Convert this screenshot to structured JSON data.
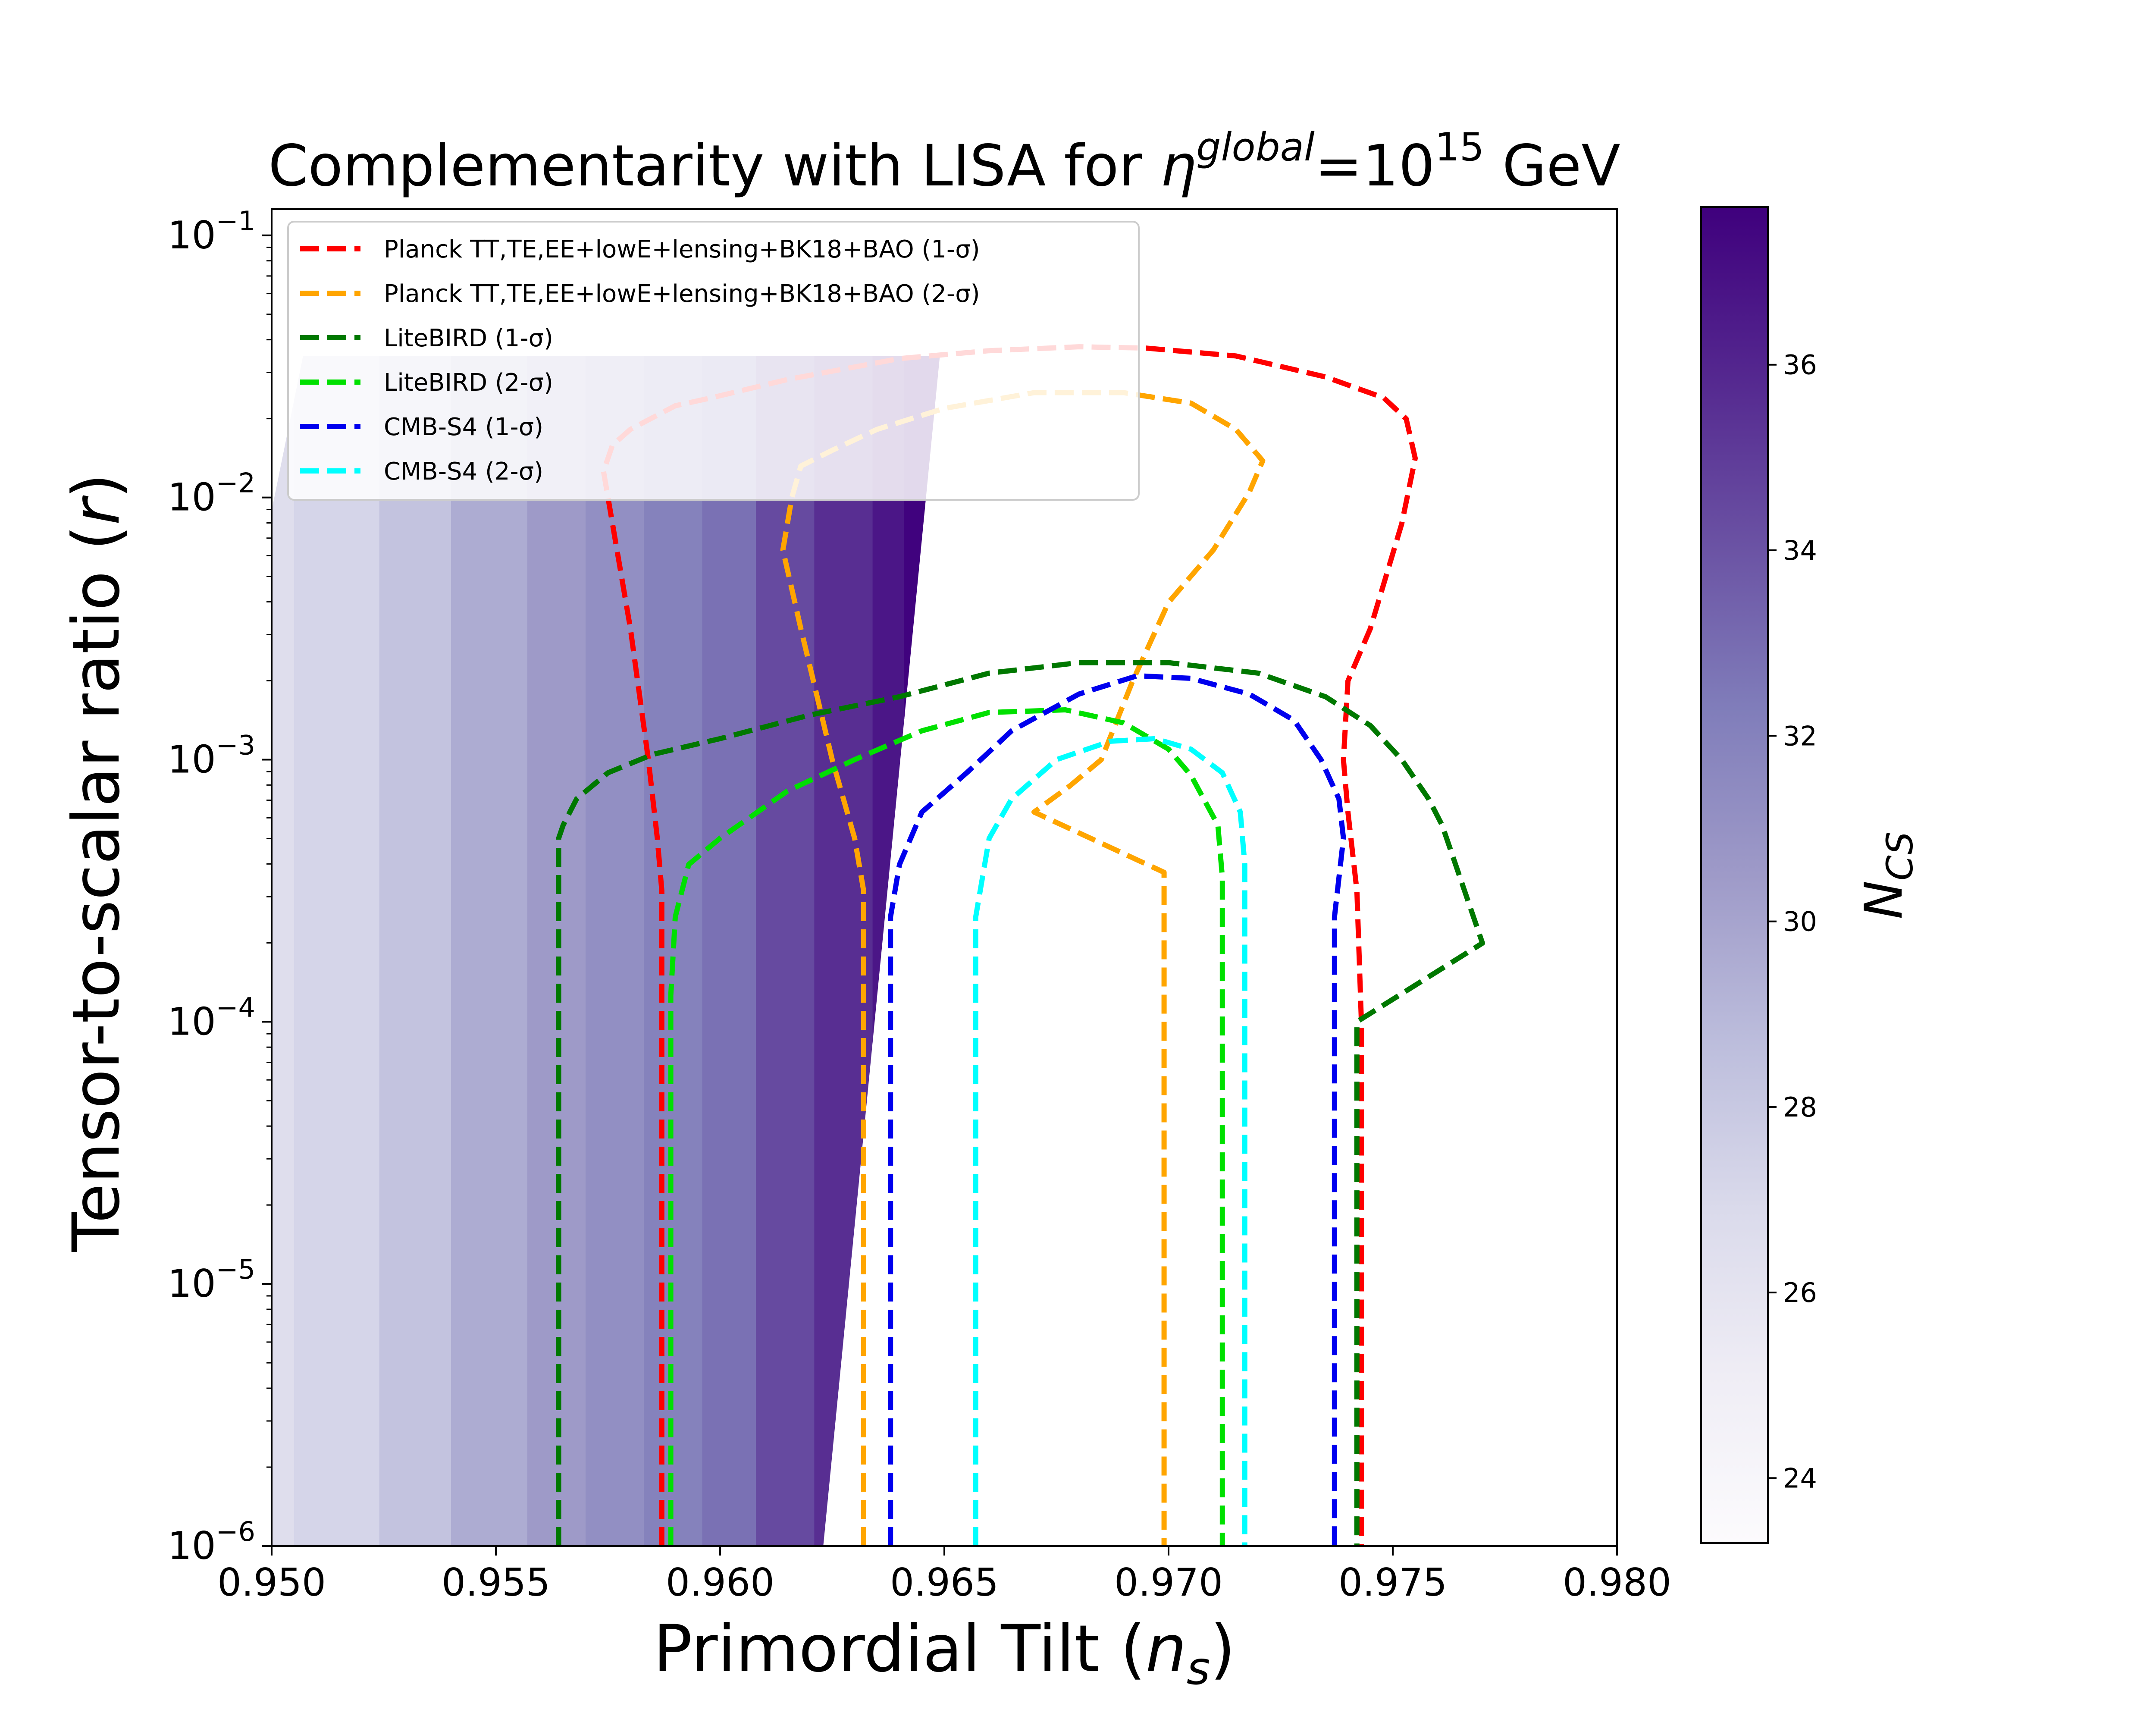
{
  "chart_data": {
    "type": "contour",
    "title_main": "Complementarity with LISA for ",
    "title_eta": "η",
    "title_sup": "global",
    "title_eq": "=10",
    "title_exp": "15",
    "title_unit": " GeV",
    "xlabel_main": "Primordial Tilt (",
    "xlabel_var": "n",
    "xlabel_sub": "s",
    "xlabel_close": ")",
    "ylabel_main": "Tensor-to-scalar ratio (",
    "ylabel_var": "r",
    "ylabel_close": ")",
    "x_range": [
      0.95,
      0.98
    ],
    "y_log_range": [
      -6,
      -0.9
    ],
    "x_ticks": [
      {
        "v": 0.95,
        "label": "0.950"
      },
      {
        "v": 0.955,
        "label": "0.955"
      },
      {
        "v": 0.96,
        "label": "0.960"
      },
      {
        "v": 0.965,
        "label": "0.965"
      },
      {
        "v": 0.97,
        "label": "0.970"
      },
      {
        "v": 0.975,
        "label": "0.975"
      },
      {
        "v": 0.98,
        "label": "0.980"
      }
    ],
    "y_ticks": [
      {
        "e": -6,
        "base": "10",
        "exp": "−6"
      },
      {
        "e": -5,
        "base": "10",
        "exp": "−5"
      },
      {
        "e": -4,
        "base": "10",
        "exp": "−4"
      },
      {
        "e": -3,
        "base": "10",
        "exp": "−3"
      },
      {
        "e": -2,
        "base": "10",
        "exp": "−2"
      },
      {
        "e": -1,
        "base": "10",
        "exp": "−1"
      }
    ],
    "colorbar": {
      "label_main": "N",
      "label_sub": "CS",
      "range": [
        23.3,
        37.7
      ],
      "ticks": [
        {
          "v": 24,
          "label": "24"
        },
        {
          "v": 26,
          "label": "26"
        },
        {
          "v": 28,
          "label": "28"
        },
        {
          "v": 30,
          "label": "30"
        },
        {
          "v": 32,
          "label": "32"
        },
        {
          "v": 34,
          "label": "34"
        },
        {
          "v": 36,
          "label": "36"
        }
      ]
    },
    "filled_region": {
      "left_log_r": [
        -2.05,
        -1.46
      ],
      "top_log_r": [
        -1.46,
        -1.46
      ],
      "right_edge": [
        [
          0.9649,
          -1.46
        ],
        [
          0.9623,
          -6.0
        ]
      ],
      "bands": [
        {
          "x0": 0.95,
          "x1": 0.9505,
          "n": 26.5
        },
        {
          "x0": 0.9505,
          "x1": 0.9524,
          "n": 27.2
        },
        {
          "x0": 0.9524,
          "x1": 0.954,
          "n": 28.3
        },
        {
          "x0": 0.954,
          "x1": 0.9557,
          "n": 29.6
        },
        {
          "x0": 0.9557,
          "x1": 0.957,
          "n": 30.5
        },
        {
          "x0": 0.957,
          "x1": 0.9583,
          "n": 31.2
        },
        {
          "x0": 0.9583,
          "x1": 0.9596,
          "n": 32.0
        },
        {
          "x0": 0.9596,
          "x1": 0.9608,
          "n": 32.8
        },
        {
          "x0": 0.9608,
          "x1": 0.9621,
          "n": 34.4
        },
        {
          "x0": 0.9621,
          "x1": 0.9634,
          "n": 35.6
        },
        {
          "x0": 0.9634,
          "x1": 0.9641,
          "n": 36.7
        },
        {
          "x0": 0.9641,
          "x1": 0.966,
          "n": 37.6
        }
      ]
    },
    "series": [
      {
        "name": "Planck TT,TE,EE+lowE+lensing+BK18+BAO (1-σ)",
        "color": "#ff0000",
        "points": [
          [
            0.9587,
            -6.0
          ],
          [
            0.9587,
            -3.5
          ],
          [
            0.9586,
            -3.3
          ],
          [
            0.9584,
            -3.0
          ],
          [
            0.958,
            -2.5
          ],
          [
            0.9575,
            -2.0
          ],
          [
            0.9574,
            -1.9
          ],
          [
            0.9576,
            -1.8
          ],
          [
            0.958,
            -1.74
          ],
          [
            0.959,
            -1.65
          ],
          [
            0.9598,
            -1.62
          ],
          [
            0.9615,
            -1.55
          ],
          [
            0.964,
            -1.47
          ],
          [
            0.966,
            -1.44
          ],
          [
            0.968,
            -1.425
          ],
          [
            0.9695,
            -1.43
          ],
          [
            0.9715,
            -1.46
          ],
          [
            0.9735,
            -1.54
          ],
          [
            0.9748,
            -1.62
          ],
          [
            0.9753,
            -1.7
          ],
          [
            0.9755,
            -1.85
          ],
          [
            0.9752,
            -2.1
          ],
          [
            0.9745,
            -2.5
          ],
          [
            0.974,
            -2.7
          ],
          [
            0.9739,
            -3.0
          ],
          [
            0.974,
            -3.2
          ],
          [
            0.9742,
            -3.5
          ],
          [
            0.9743,
            -4.0
          ],
          [
            0.9743,
            -6.0
          ]
        ]
      },
      {
        "name": "Planck TT,TE,EE+lowE+lensing+BK18+BAO (2-σ)",
        "color": "#ffa500",
        "points": [
          [
            0.9632,
            -6.0
          ],
          [
            0.9632,
            -3.5
          ],
          [
            0.963,
            -3.3
          ],
          [
            0.9625,
            -3.0
          ],
          [
            0.9618,
            -2.5
          ],
          [
            0.9614,
            -2.2
          ],
          [
            0.9616,
            -2.0
          ],
          [
            0.9618,
            -1.88
          ],
          [
            0.9625,
            -1.82
          ],
          [
            0.9635,
            -1.74
          ],
          [
            0.965,
            -1.66
          ],
          [
            0.967,
            -1.6
          ],
          [
            0.969,
            -1.6
          ],
          [
            0.9705,
            -1.64
          ],
          [
            0.9715,
            -1.74
          ],
          [
            0.9721,
            -1.86
          ],
          [
            0.9718,
            -1.98
          ],
          [
            0.971,
            -2.2
          ],
          [
            0.97,
            -2.4
          ],
          [
            0.9692,
            -2.7
          ],
          [
            0.9685,
            -3.0
          ],
          [
            0.9678,
            -3.1
          ],
          [
            0.967,
            -3.2
          ],
          [
            0.9699,
            -3.43
          ],
          [
            0.9699,
            -6.0
          ]
        ]
      },
      {
        "name": "LiteBIRD (1-σ)",
        "color": "#007800",
        "points": [
          [
            0.9564,
            -6.0
          ],
          [
            0.9564,
            -3.3
          ],
          [
            0.9565,
            -3.25
          ],
          [
            0.9568,
            -3.15
          ],
          [
            0.9575,
            -3.05
          ],
          [
            0.9585,
            -2.98
          ],
          [
            0.96,
            -2.92
          ],
          [
            0.962,
            -2.83
          ],
          [
            0.964,
            -2.76
          ],
          [
            0.966,
            -2.67
          ],
          [
            0.968,
            -2.63
          ],
          [
            0.97,
            -2.63
          ],
          [
            0.972,
            -2.67
          ],
          [
            0.9735,
            -2.76
          ],
          [
            0.9745,
            -2.87
          ],
          [
            0.9752,
            -3.0
          ],
          [
            0.9758,
            -3.15
          ],
          [
            0.9761,
            -3.25
          ],
          [
            0.9765,
            -3.45
          ],
          [
            0.977,
            -3.7
          ],
          [
            0.9742,
            -4.0
          ],
          [
            0.9742,
            -6.0
          ]
        ]
      },
      {
        "name": "LiteBIRD (2-σ)",
        "color": "#00e000",
        "points": [
          [
            0.9589,
            -6.0
          ],
          [
            0.9589,
            -3.9
          ],
          [
            0.959,
            -3.6
          ],
          [
            0.9593,
            -3.4
          ],
          [
            0.96,
            -3.3
          ],
          [
            0.9615,
            -3.12
          ],
          [
            0.963,
            -3.0
          ],
          [
            0.9645,
            -2.89
          ],
          [
            0.966,
            -2.82
          ],
          [
            0.9677,
            -2.81
          ],
          [
            0.969,
            -2.86
          ],
          [
            0.97,
            -2.96
          ],
          [
            0.9705,
            -3.06
          ],
          [
            0.9711,
            -3.25
          ],
          [
            0.9712,
            -3.45
          ],
          [
            0.9712,
            -6.0
          ]
        ]
      },
      {
        "name": "CMB-S4 (1-σ)",
        "color": "#0000ee",
        "points": [
          [
            0.9638,
            -6.0
          ],
          [
            0.9638,
            -3.6
          ],
          [
            0.964,
            -3.4
          ],
          [
            0.9645,
            -3.2
          ],
          [
            0.9655,
            -3.05
          ],
          [
            0.9665,
            -2.89
          ],
          [
            0.968,
            -2.75
          ],
          [
            0.9693,
            -2.68
          ],
          [
            0.9705,
            -2.69
          ],
          [
            0.9718,
            -2.75
          ],
          [
            0.9728,
            -2.85
          ],
          [
            0.9734,
            -3.0
          ],
          [
            0.9738,
            -3.15
          ],
          [
            0.9739,
            -3.3
          ],
          [
            0.9737,
            -3.6
          ],
          [
            0.9737,
            -6.0
          ]
        ]
      },
      {
        "name": "CMB-S4 (2-σ)",
        "color": "#00ffff",
        "points": [
          [
            0.9657,
            -6.0
          ],
          [
            0.9657,
            -3.6
          ],
          [
            0.966,
            -3.3
          ],
          [
            0.9665,
            -3.15
          ],
          [
            0.9675,
            -3.0
          ],
          [
            0.9687,
            -2.93
          ],
          [
            0.9697,
            -2.92
          ],
          [
            0.9705,
            -2.96
          ],
          [
            0.9712,
            -3.05
          ],
          [
            0.9716,
            -3.2
          ],
          [
            0.9717,
            -3.4
          ],
          [
            0.9717,
            -6.0
          ]
        ]
      }
    ]
  }
}
